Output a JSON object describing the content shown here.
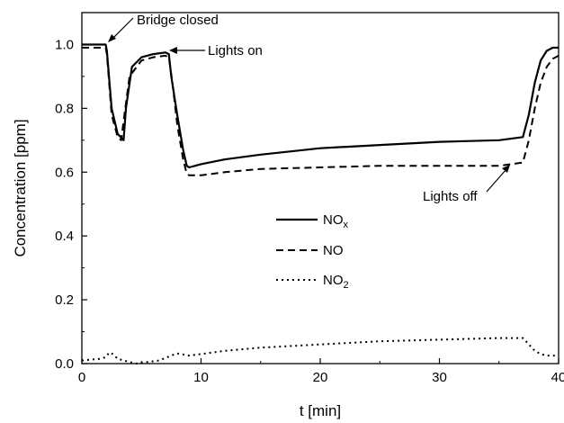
{
  "chart_data": {
    "type": "line",
    "xlabel": "t [min]",
    "ylabel": "Concentration [ppm]",
    "xlim": [
      0,
      40
    ],
    "ylim": [
      0,
      1.1
    ],
    "x_ticks": [
      0,
      10,
      20,
      30,
      40
    ],
    "y_ticks": [
      0.0,
      0.2,
      0.4,
      0.6,
      0.8,
      1.0
    ],
    "x_tick_labels": [
      "0",
      "10",
      "20",
      "30",
      "40"
    ],
    "y_tick_labels": [
      "0.0",
      "0.2",
      "0.4",
      "0.6",
      "0.8",
      "1.0"
    ],
    "grid": false,
    "legend_placement": "center",
    "series": [
      {
        "name": "NOx",
        "name_main": "NO",
        "name_sub": "x",
        "style": "solid",
        "x": [
          0,
          2.0,
          2.1,
          2.5,
          3.0,
          3.5,
          3.7,
          4.2,
          5.0,
          6.0,
          7.0,
          7.3,
          7.5,
          8.0,
          8.5,
          8.8,
          9.0,
          10,
          12,
          15,
          20,
          25,
          30,
          35,
          37.0,
          37.5,
          38.0,
          38.5,
          39.0,
          39.5,
          40
        ],
        "y": [
          1.0,
          1.0,
          0.98,
          0.8,
          0.72,
          0.7,
          0.8,
          0.93,
          0.96,
          0.97,
          0.975,
          0.97,
          0.9,
          0.78,
          0.67,
          0.62,
          0.615,
          0.625,
          0.64,
          0.655,
          0.675,
          0.685,
          0.695,
          0.7,
          0.71,
          0.78,
          0.88,
          0.95,
          0.98,
          0.99,
          0.99
        ]
      },
      {
        "name": "NO",
        "name_main": "NO",
        "name_sub": "",
        "style": "dashed",
        "x": [
          0,
          2.0,
          2.1,
          2.5,
          3.0,
          3.3,
          3.5,
          4.0,
          5.0,
          6.0,
          7.0,
          7.3,
          7.6,
          8.0,
          8.5,
          8.8,
          9.0,
          10,
          12,
          15,
          20,
          25,
          30,
          35,
          37.0,
          37.5,
          38.0,
          38.5,
          39.0,
          39.5,
          40
        ],
        "y": [
          0.99,
          0.99,
          0.97,
          0.78,
          0.71,
          0.7,
          0.76,
          0.9,
          0.95,
          0.96,
          0.965,
          0.96,
          0.88,
          0.75,
          0.64,
          0.595,
          0.59,
          0.59,
          0.6,
          0.61,
          0.615,
          0.62,
          0.62,
          0.62,
          0.63,
          0.7,
          0.8,
          0.88,
          0.93,
          0.955,
          0.965
        ]
      },
      {
        "name": "NO2",
        "name_main": "NO",
        "name_sub": "2",
        "style": "dotted",
        "x": [
          0,
          1.5,
          2.0,
          2.3,
          2.6,
          3.0,
          3.5,
          4.5,
          5.5,
          6.5,
          7.5,
          8.0,
          8.3,
          9.0,
          10,
          12,
          15,
          20,
          25,
          30,
          35,
          37.0,
          37.5,
          38.0,
          38.5,
          39.0,
          40
        ],
        "y": [
          0.01,
          0.015,
          0.02,
          0.035,
          0.03,
          0.015,
          0.01,
          0.0,
          0.005,
          0.01,
          0.025,
          0.032,
          0.03,
          0.025,
          0.03,
          0.04,
          0.05,
          0.06,
          0.07,
          0.075,
          0.08,
          0.08,
          0.06,
          0.04,
          0.03,
          0.025,
          0.025
        ]
      }
    ],
    "annotations": [
      {
        "text": "Bridge closed",
        "x": 2.1,
        "y": 1.0
      },
      {
        "text": "Lights on",
        "x": 7.2,
        "y": 0.97
      },
      {
        "text": "Lights off",
        "x": 36.9,
        "y": 0.64
      }
    ]
  }
}
